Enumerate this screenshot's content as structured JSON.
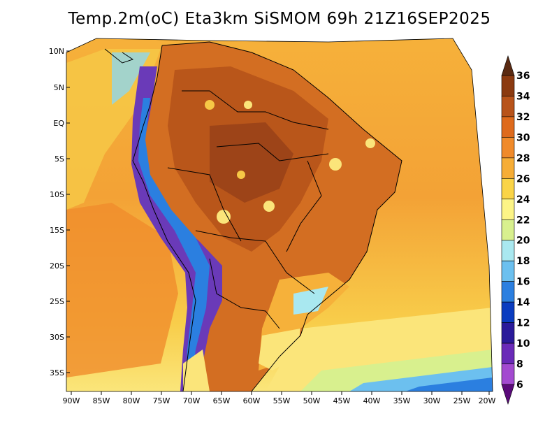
{
  "title": "Temp.2m(oC) Eta3km SiSMOM 69h 21Z16SEP2025",
  "lat_labels": [
    "10N",
    "5N",
    "EQ",
    "5S",
    "10S",
    "15S",
    "20S",
    "25S",
    "30S",
    "35S"
  ],
  "lon_labels": [
    "90W",
    "85W",
    "80W",
    "75W",
    "70W",
    "65W",
    "60W",
    "55W",
    "50W",
    "45W",
    "40W",
    "35W",
    "30W",
    "25W",
    "20W"
  ],
  "colorbar": {
    "labels": [
      "36",
      "34",
      "32",
      "30",
      "28",
      "26",
      "24",
      "22",
      "20",
      "18",
      "16",
      "14",
      "12",
      "10",
      "8",
      "6"
    ],
    "colors": [
      "#5a2a12",
      "#8b3a10",
      "#b8531a",
      "#de6a1c",
      "#f08a2a",
      "#f6ad36",
      "#fad447",
      "#fcf486",
      "#d8f08e",
      "#a9e8f0",
      "#6cc0ef",
      "#2b7fe0",
      "#0a3cc0",
      "#2a1a9a",
      "#6a2ab8",
      "#a34ad0",
      "#5a0a7a"
    ]
  },
  "colors": {
    "ocean_warm": "#f2a03a",
    "ocean_mid": "#f8c946",
    "ocean_cool": "#fbe57a",
    "land_hot": "#c96420",
    "land_hotter": "#a94a1a",
    "andes": "#6a3ab8",
    "andes_high": "#2b2aa0"
  }
}
